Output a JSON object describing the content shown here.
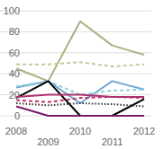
{
  "chart_data": {
    "type": "line",
    "categories": [
      "2008",
      "2009",
      "2010",
      "2011",
      "2012"
    ],
    "ylim": [
      0,
      100
    ],
    "yticks": [
      0,
      20,
      40,
      60,
      80,
      100
    ],
    "grid": true,
    "series": [
      {
        "color": "#a8b07c",
        "line_style": "solid",
        "values": [
          45,
          33,
          90,
          67,
          58
        ]
      },
      {
        "color": "#c5c99a",
        "line_style": "dashed",
        "values": [
          49,
          49,
          51,
          47,
          49
        ]
      },
      {
        "color": "#6fa8d6",
        "line_style": "solid",
        "values": [
          27,
          33,
          12,
          33,
          25
        ]
      },
      {
        "color": "#8fcfd6",
        "line_style": "dashed",
        "values": [
          28,
          33,
          20,
          24,
          25
        ]
      },
      {
        "color": "#000000",
        "line_style": "solid",
        "values": [
          17,
          33,
          0,
          0,
          16
        ]
      },
      {
        "color": "#333333",
        "line_style": "dotted",
        "values": [
          12,
          10,
          12,
          11,
          9
        ]
      },
      {
        "color": "#c0306a",
        "line_style": "dashed",
        "values": [
          15,
          13,
          17,
          18,
          17
        ]
      },
      {
        "color": "#b03070",
        "line_style": "solid",
        "values": [
          18,
          20,
          20,
          18,
          18
        ]
      },
      {
        "color": "#7a1a6a",
        "line_style": "solid",
        "values": [
          9,
          0,
          0,
          0,
          0
        ]
      }
    ]
  }
}
